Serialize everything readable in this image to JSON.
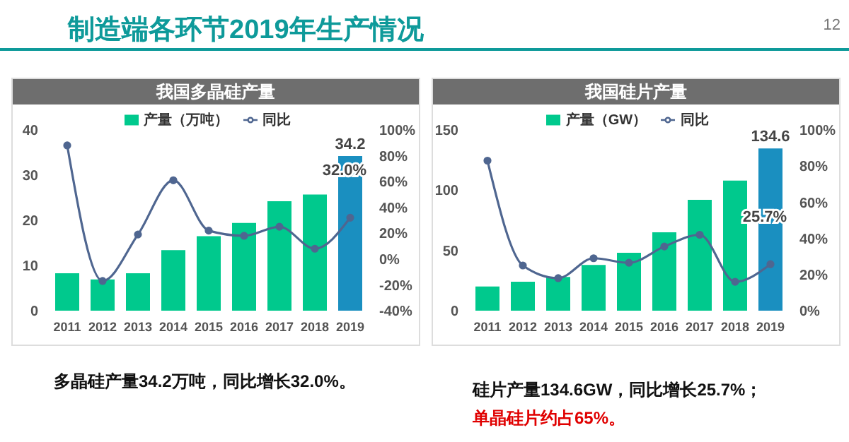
{
  "chart_data": [
    {
      "type": "bar",
      "title": "我国多晶硅产量",
      "categories": [
        "2011",
        "2012",
        "2013",
        "2014",
        "2015",
        "2016",
        "2017",
        "2018",
        "2019"
      ],
      "series": [
        {
          "name": "产量（万吨）",
          "values": [
            8.3,
            6.9,
            8.3,
            13.4,
            16.5,
            19.4,
            24.2,
            25.7,
            34.2
          ],
          "colors": [
            "#00c98d",
            "#00c98d",
            "#00c98d",
            "#00c98d",
            "#00c98d",
            "#00c98d",
            "#00c98d",
            "#00c98d",
            "#1a8fc0"
          ],
          "value_labels": [
            null,
            null,
            null,
            null,
            null,
            null,
            null,
            null,
            "34.2"
          ]
        },
        {
          "type": "line",
          "name": "同比",
          "axis": "y2",
          "color": "#4f6690",
          "values": [
            88,
            -17,
            19,
            61,
            22,
            18,
            25,
            8,
            32.0
          ],
          "value_labels": [
            null,
            null,
            null,
            null,
            null,
            null,
            null,
            null,
            "32.0%"
          ]
        }
      ],
      "ylim": [
        0,
        40
      ],
      "yticks": [
        0,
        10,
        20,
        30,
        40
      ],
      "y2lim": [
        -40,
        100
      ],
      "y2ticks": [
        {
          "value": -40,
          "label": "-40%"
        },
        {
          "value": -20,
          "label": "-20%"
        },
        {
          "value": 0,
          "label": "0%"
        },
        {
          "value": 20,
          "label": "20%"
        },
        {
          "value": 40,
          "label": "40%"
        },
        {
          "value": 60,
          "label": "60%"
        },
        {
          "value": 80,
          "label": "80%"
        },
        {
          "value": 100,
          "label": "100%"
        }
      ],
      "legend": "top",
      "marker": "circle",
      "annotations": [
        "制造端各环节2019年生产情况",
        "12",
        "多晶硅产量34.2万吨，同比增长32.0%。"
      ]
    },
    {
      "type": "bar",
      "title": "我国硅片产量",
      "categories": [
        "2011",
        "2012",
        "2013",
        "2014",
        "2015",
        "2016",
        "2017",
        "2018",
        "2019"
      ],
      "series": [
        {
          "name": "产量（GW）",
          "values": [
            20,
            24,
            28,
            38,
            48,
            65,
            92,
            108,
            134.6
          ],
          "colors": [
            "#00c98d",
            "#00c98d",
            "#00c98d",
            "#00c98d",
            "#00c98d",
            "#00c98d",
            "#00c98d",
            "#00c98d",
            "#1a8fc0"
          ],
          "value_labels": [
            null,
            null,
            null,
            null,
            null,
            null,
            null,
            null,
            "134.6"
          ]
        },
        {
          "type": "line",
          "name": "同比",
          "axis": "y2",
          "color": "#4f6690",
          "values": [
            83,
            25,
            18,
            29,
            26.5,
            35.5,
            42,
            16,
            25.7
          ],
          "value_labels": [
            null,
            null,
            null,
            null,
            null,
            null,
            null,
            null,
            "25.7%"
          ]
        }
      ],
      "ylim": [
        0,
        150
      ],
      "yticks": [
        0,
        50,
        100,
        150
      ],
      "y2lim": [
        0,
        100
      ],
      "y2ticks": [
        {
          "value": 0,
          "label": "0%"
        },
        {
          "value": 20,
          "label": "20%"
        },
        {
          "value": 40,
          "label": "40%"
        },
        {
          "value": 60,
          "label": "60%"
        },
        {
          "value": 80,
          "label": "80%"
        },
        {
          "value": 100,
          "label": "100%"
        }
      ],
      "legend": "top",
      "marker": "circle",
      "annotations": [
        "硅片产量134.6GW，同比增长25.7%；",
        "单晶硅片约占65%。"
      ]
    }
  ]
}
